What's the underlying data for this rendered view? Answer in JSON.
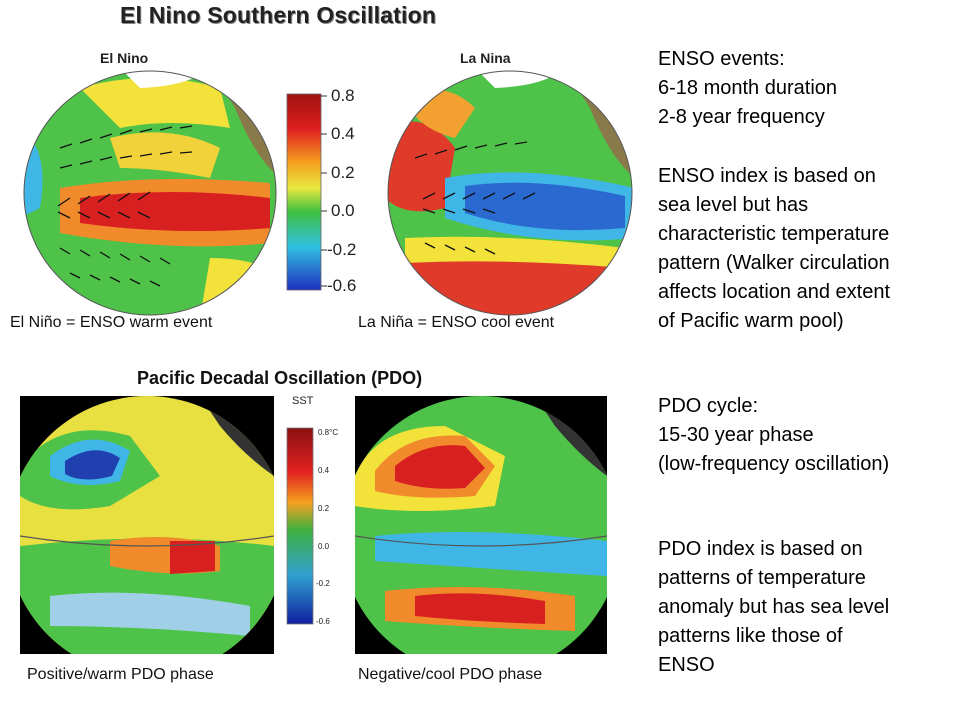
{
  "enso": {
    "title": "El Nino Southern Oscillation",
    "left_label": "El Nino",
    "right_label": "La Nina",
    "left_caption": "El Niño = ENSO warm event",
    "right_caption": "La Niña = ENSO cool event",
    "colorbar_ticks": [
      "0.8",
      "0.4",
      "0.2",
      "0.0",
      "-0.2",
      "-0.6"
    ]
  },
  "pdo": {
    "title": "Pacific Decadal Oscillation (PDO)",
    "colorbar_title": "SST",
    "colorbar_ticks": [
      "0.8°C",
      "0.4",
      "0.2",
      "0.0",
      "-0.2",
      "-0.6"
    ],
    "left_caption": "Positive/warm PDO phase",
    "right_caption": "Negative/cool PDO phase"
  },
  "notes": {
    "enso_lines": [
      "ENSO events:",
      "6-18 month duration",
      "2-8 year frequency"
    ],
    "enso_index_lines": [
      "ENSO index is based on",
      "sea level but has",
      "characteristic temperature",
      "pattern (Walker circulation",
      "affects location and extent",
      "of Pacific warm pool)"
    ],
    "pdo_lines": [
      "PDO cycle:",
      "15-30 year phase",
      "(low-frequency oscillation)"
    ],
    "pdo_index_lines": [
      "PDO index is based on",
      "patterns of temperature",
      "anomaly but has sea level",
      "patterns like those of",
      "ENSO"
    ]
  },
  "colors": {
    "deep_blue": "#1f3fbf",
    "cyan": "#3fb6e6",
    "green": "#3fbf3f",
    "yellow": "#f2e23a",
    "orange": "#f08a2a",
    "red": "#d92020",
    "land": "#8a7a4a"
  }
}
